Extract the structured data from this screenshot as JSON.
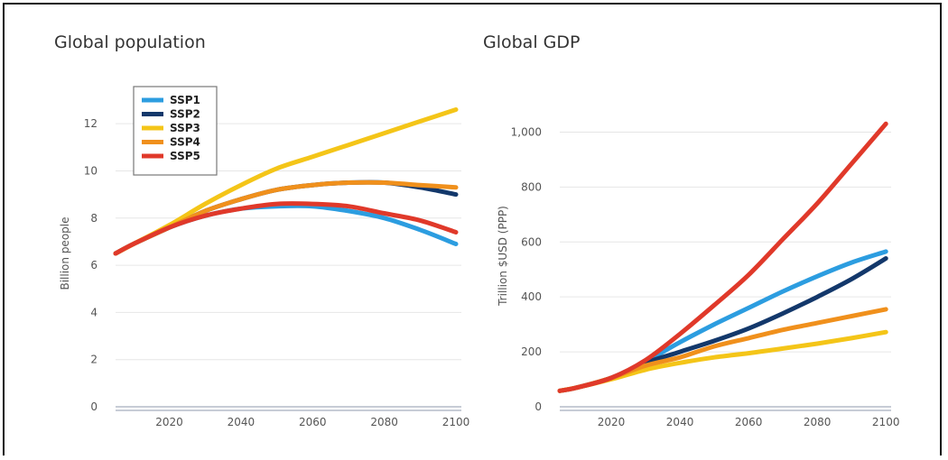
{
  "chart_data": [
    {
      "type": "line",
      "title": "Global population",
      "xlabel": "",
      "ylabel": "Billion people",
      "xlim": [
        2005,
        2101
      ],
      "ylim": [
        0,
        13
      ],
      "x_ticks": [
        2020,
        2040,
        2060,
        2080,
        2100
      ],
      "y_ticks": [
        0,
        2,
        4,
        6,
        8,
        10,
        12
      ],
      "y_tick_labels": [
        "0",
        "2",
        "4",
        "6",
        "8",
        "10",
        "12"
      ],
      "grid": true,
      "legend": {
        "position": "top-left",
        "entries": [
          "SSP1",
          "SSP2",
          "SSP3",
          "SSP4",
          "SSP5"
        ]
      },
      "x": [
        2005,
        2010,
        2020,
        2030,
        2040,
        2050,
        2060,
        2070,
        2080,
        2090,
        2100
      ],
      "series": [
        {
          "name": "SSP1",
          "color": "#2c9de0",
          "values": [
            6.5,
            6.9,
            7.6,
            8.1,
            8.4,
            8.5,
            8.5,
            8.3,
            8.0,
            7.5,
            6.9
          ]
        },
        {
          "name": "SSP2",
          "color": "#13386b",
          "values": [
            6.5,
            6.9,
            7.6,
            8.3,
            8.8,
            9.2,
            9.4,
            9.5,
            9.5,
            9.3,
            9.0
          ]
        },
        {
          "name": "SSP3",
          "color": "#f4c518",
          "values": [
            6.5,
            6.9,
            7.7,
            8.6,
            9.4,
            10.1,
            10.6,
            11.1,
            11.6,
            12.1,
            12.6
          ]
        },
        {
          "name": "SSP4",
          "color": "#f0901c",
          "values": [
            6.5,
            6.9,
            7.6,
            8.3,
            8.8,
            9.2,
            9.4,
            9.5,
            9.5,
            9.4,
            9.3
          ]
        },
        {
          "name": "SSP5",
          "color": "#e0392a",
          "values": [
            6.5,
            6.9,
            7.6,
            8.1,
            8.4,
            8.6,
            8.6,
            8.5,
            8.2,
            7.9,
            7.4
          ]
        }
      ]
    },
    {
      "type": "line",
      "title": "Global GDP",
      "xlabel": "",
      "ylabel": "Trillion $USD (PPP)",
      "xlim": [
        2005,
        2101
      ],
      "ylim": [
        0,
        1100
      ],
      "x_ticks": [
        2020,
        2040,
        2060,
        2080,
        2100
      ],
      "y_ticks": [
        0,
        200,
        400,
        600,
        800,
        1000
      ],
      "y_tick_labels": [
        "0",
        "200",
        "400",
        "600",
        "800",
        "1,000"
      ],
      "grid": true,
      "x": [
        2005,
        2010,
        2020,
        2030,
        2040,
        2050,
        2060,
        2070,
        2080,
        2090,
        2100
      ],
      "series": [
        {
          "name": "SSP1",
          "color": "#2c9de0",
          "values": [
            58,
            70,
            105,
            165,
            235,
            300,
            360,
            420,
            475,
            525,
            565
          ]
        },
        {
          "name": "SSP2",
          "color": "#13386b",
          "values": [
            58,
            70,
            105,
            160,
            200,
            240,
            285,
            340,
            400,
            465,
            540
          ]
        },
        {
          "name": "SSP3",
          "color": "#f4c518",
          "values": [
            58,
            70,
            100,
            135,
            160,
            180,
            195,
            212,
            230,
            250,
            272
          ]
        },
        {
          "name": "SSP4",
          "color": "#f0901c",
          "values": [
            58,
            70,
            105,
            150,
            180,
            220,
            250,
            280,
            305,
            330,
            355
          ]
        },
        {
          "name": "SSP5",
          "color": "#e0392a",
          "values": [
            58,
            70,
            105,
            170,
            265,
            370,
            480,
            610,
            740,
            885,
            1030
          ]
        }
      ]
    }
  ]
}
